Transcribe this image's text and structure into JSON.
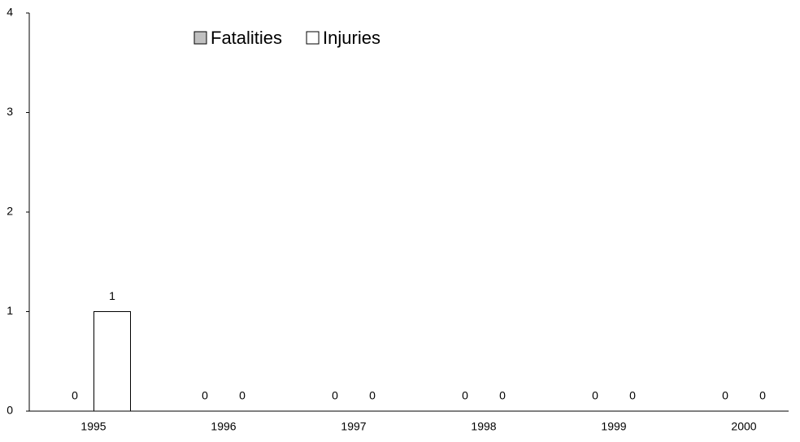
{
  "chart_data": {
    "type": "bar",
    "categories": [
      "1995",
      "1996",
      "1997",
      "1998",
      "1999",
      "2000"
    ],
    "series": [
      {
        "name": "Fatalities",
        "color": "#c0c0c0",
        "values": [
          0,
          0,
          0,
          0,
          0,
          0
        ]
      },
      {
        "name": "Injuries",
        "color": "#ffffff",
        "values": [
          1,
          0,
          0,
          0,
          0,
          0
        ]
      }
    ],
    "ylim": [
      0,
      4
    ],
    "yticks": [
      0,
      1,
      2,
      3,
      4
    ],
    "legend": "top"
  }
}
